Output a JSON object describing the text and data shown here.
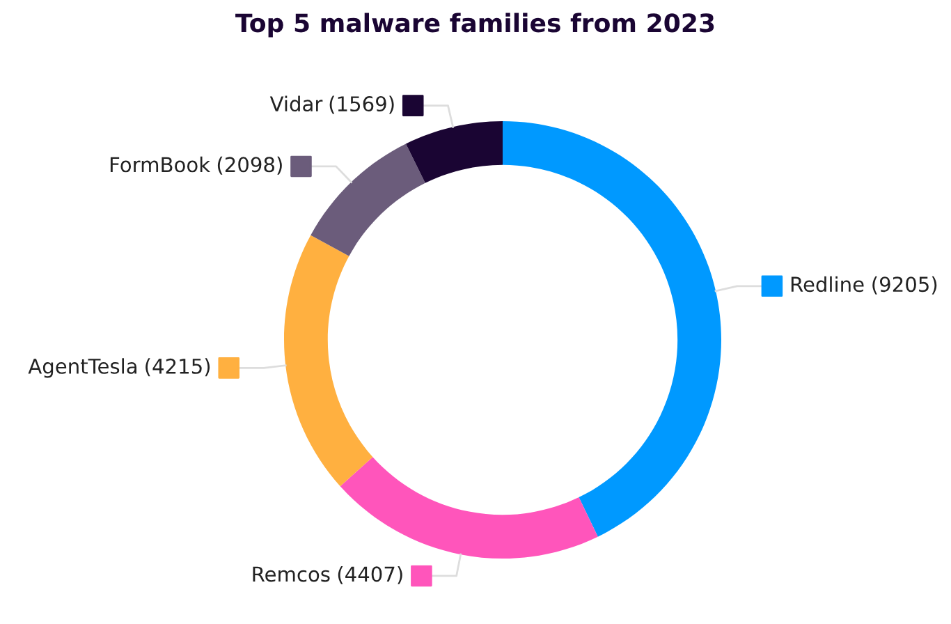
{
  "chart_data": {
    "type": "donut",
    "title": "Top 5 malware families from 2023",
    "categories": [
      "Redline",
      "Remcos",
      "AgentTesla",
      "FormBook",
      "Vidar"
    ],
    "values": [
      9205,
      4407,
      4215,
      2098,
      1569
    ],
    "value_labels": [
      "(9205)",
      "(4407)",
      "(4215)",
      "(2098)",
      "(1569)"
    ],
    "colors": [
      "#0099ff",
      "#ff55bb",
      "#ffb040",
      "#6b5c7b",
      "#1a0533"
    ]
  }
}
